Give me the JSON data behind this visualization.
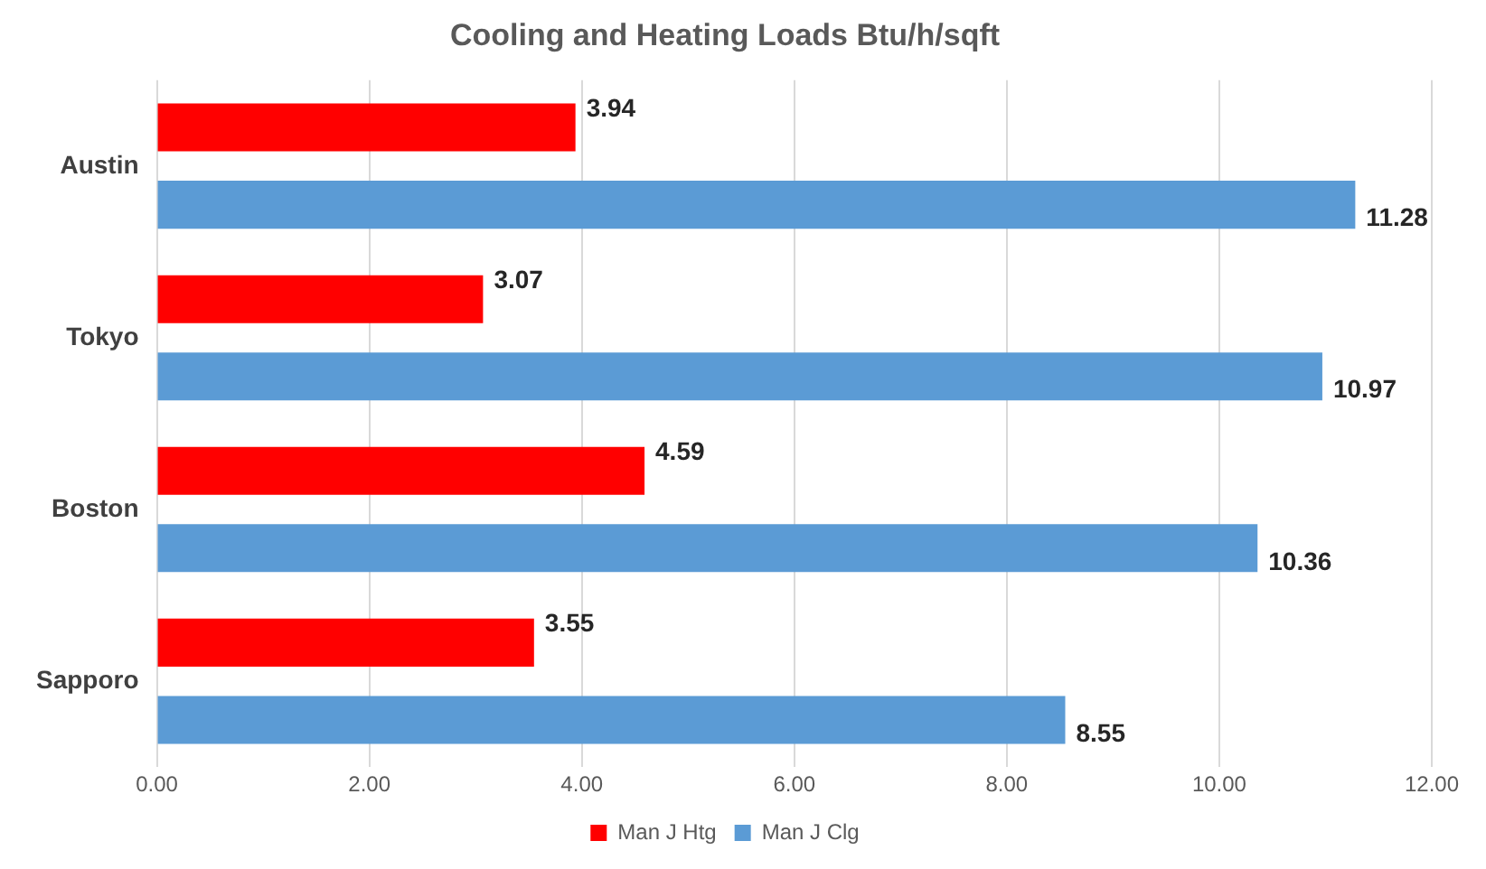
{
  "chart_data": {
    "type": "bar",
    "orientation": "horizontal",
    "title": "Cooling and Heating Loads Btu/h/sqft",
    "categories": [
      "Austin",
      "Tokyo",
      "Boston",
      "Sapporo"
    ],
    "series": [
      {
        "name": "Man J Htg",
        "color": "#ff0000",
        "values": [
          3.94,
          3.07,
          4.59,
          3.55
        ]
      },
      {
        "name": "Man J Clg",
        "color": "#5b9bd5",
        "values": [
          11.28,
          10.97,
          10.36,
          8.55
        ]
      }
    ],
    "xlim": [
      0,
      12
    ],
    "xticks": [
      {
        "value": 0,
        "label": "0.00"
      },
      {
        "value": 2,
        "label": "2.00"
      },
      {
        "value": 4,
        "label": "4.00"
      },
      {
        "value": 6,
        "label": "6.00"
      },
      {
        "value": 8,
        "label": "8.00"
      },
      {
        "value": 10,
        "label": "10.00"
      },
      {
        "value": 12,
        "label": "12.00"
      }
    ],
    "grid": "x",
    "legend": "bottom",
    "data_labels": true
  }
}
